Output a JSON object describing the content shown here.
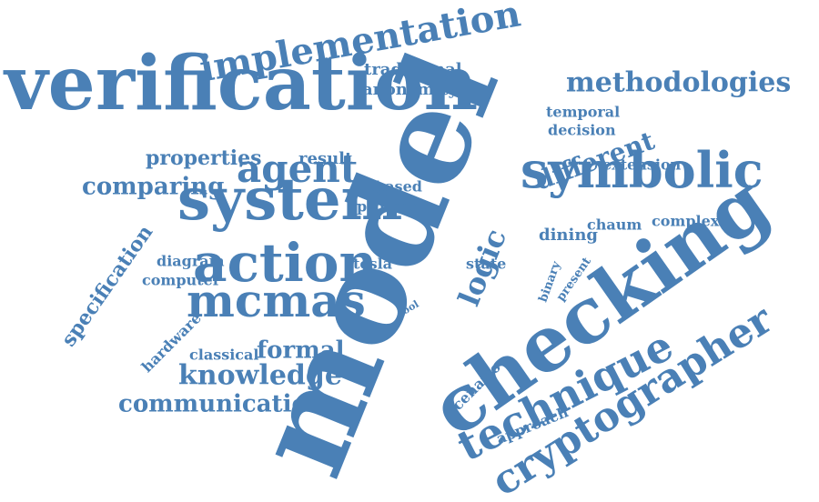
{
  "colors": {
    "word": "#4a80b6",
    "background": "#ffffff"
  },
  "words": [
    "model",
    "verification",
    "checking",
    "system",
    "action",
    "symbolic",
    "cryptographer",
    "technique",
    "mcmas",
    "implementation",
    "agent",
    "knowledge",
    "communication",
    "methodologies",
    "logic",
    "different",
    "formal",
    "comparing",
    "properties",
    "specification",
    "traditional",
    "anonymity",
    "temporal",
    "decision",
    "extension",
    "chaum",
    "complex",
    "dining",
    "result",
    "based",
    "protocol",
    "diagram",
    "computer",
    "tesla",
    "state",
    "hardware",
    "classical",
    "scenario",
    "approach",
    "binary",
    "present",
    "tool"
  ]
}
